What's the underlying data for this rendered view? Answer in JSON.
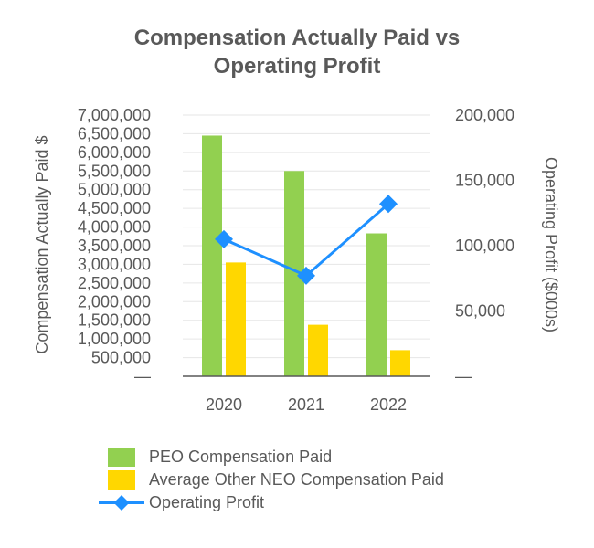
{
  "chart_data": {
    "type": "bar",
    "title": [
      "Compensation Actually Paid vs",
      "Operating Profit"
    ],
    "categories": [
      "2020",
      "2021",
      "2022"
    ],
    "series": [
      {
        "name": "PEO Compensation Paid",
        "type": "bar",
        "axis": "left",
        "color": "#92D050",
        "values": [
          6450000,
          5500000,
          3830000
        ]
      },
      {
        "name": "Average Other NEO Compensation Paid",
        "type": "bar",
        "axis": "left",
        "color": "#FFD700",
        "values": [
          3050000,
          1380000,
          700000
        ]
      },
      {
        "name": "Operating Profit",
        "type": "line",
        "marker": "diamond",
        "axis": "right",
        "color": "#1E90FF",
        "values": [
          105000,
          77000,
          132000
        ]
      }
    ],
    "y_left": {
      "label": "Compensation Actually Paid $",
      "range": [
        0,
        7000000
      ],
      "ticks": [
        0,
        500000,
        1000000,
        1500000,
        2000000,
        2500000,
        3000000,
        3500000,
        4000000,
        4500000,
        5000000,
        5500000,
        6000000,
        6500000,
        7000000
      ],
      "tick_labels": [
        "—",
        "500,000",
        "1,000,000",
        "1,500,000",
        "2,000,000",
        "2,500,000",
        "3,000,000",
        "3,500,000",
        "4,000,000",
        "4,500,000",
        "5,000,000",
        "5,500,000",
        "6,000,000",
        "6,500,000",
        "7,000,000"
      ]
    },
    "y_right": {
      "label": "Operating Profit ($000s)",
      "range": [
        0,
        200000
      ],
      "ticks": [
        0,
        50000,
        100000,
        150000,
        200000
      ],
      "tick_labels": [
        "—",
        "50,000",
        "100,000",
        "150,000",
        "200,000"
      ]
    },
    "grid": true,
    "legend_position": "bottom"
  },
  "colors": {
    "gridline": "#e6e6e6",
    "axis": "#595959",
    "text": "#595959"
  }
}
